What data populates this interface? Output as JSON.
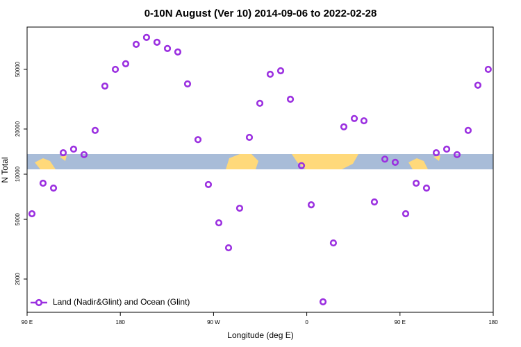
{
  "chart_data": {
    "type": "scatter",
    "title": "0-10N August (Ver 10)   2014-09-06 to 2022-02-28",
    "xlabel": "Longitude (deg E)",
    "ylabel": "N Total",
    "series": [
      {
        "name": "Land (Nadir&Glint) and Ocean (Glint)",
        "color": "#9b30e0",
        "x": [
          94.7,
          105.4,
          115.5,
          124.9,
          134.9,
          145,
          155.7,
          165.1,
          175.2,
          185.2,
          195.3,
          205.3,
          215.4,
          225.5,
          235.5,
          244.9,
          255,
          265,
          275.1,
          284.5,
          295.2,
          304.6,
          314.7,
          324.7,
          334.8,
          344.2,
          354.9,
          364.3,
          375.7,
          385.7,
          395.8,
          405.9,
          415.2,
          425.3,
          435.4,
          445.4,
          455.5,
          465.6,
          475.6,
          485,
          495.1,
          505.1,
          515.8,
          525.2,
          535.2
        ],
        "values": [
          5450,
          8710,
          8080,
          13900,
          14700,
          13500,
          19600,
          38700,
          50000,
          54500,
          73400,
          81700,
          75800,
          68900,
          65300,
          40000,
          17000,
          8530,
          4740,
          3230,
          5930,
          17600,
          29700,
          46400,
          48900,
          31600,
          11400,
          6250,
          1410,
          3480,
          20700,
          23500,
          22700,
          6530,
          12600,
          12000,
          5450,
          8710,
          8080,
          13900,
          14700,
          13500,
          19600,
          39200,
          50000
        ]
      }
    ],
    "xlim": [
      90,
      540
    ],
    "xticks": [
      {
        "value": 90,
        "label": "90 E"
      },
      {
        "value": 180,
        "label": "180"
      },
      {
        "value": 270,
        "label": "90 W"
      },
      {
        "value": 360,
        "label": "0"
      },
      {
        "value": 450,
        "label": "90 E"
      },
      {
        "value": 540,
        "label": "180"
      }
    ],
    "ylim": [
      1200,
      95700
    ],
    "ylog": true,
    "yticks": [
      2000,
      5000,
      10000,
      20000,
      50000
    ],
    "legend": "lower left"
  }
}
